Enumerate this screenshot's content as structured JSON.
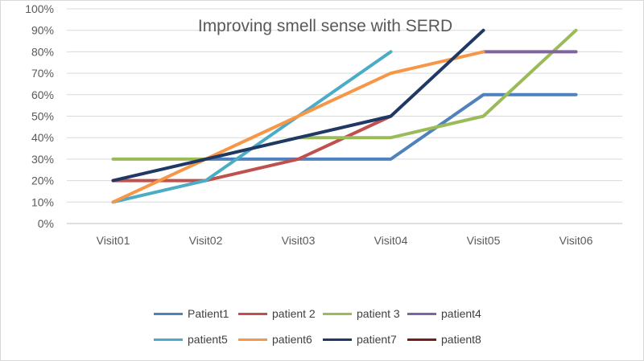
{
  "chart_data": {
    "type": "line",
    "title": "Improving smell sense with SERD",
    "xlabel": "",
    "ylabel": "",
    "categories": [
      "Visit01",
      "Visit02",
      "Visit03",
      "Visit04",
      "Visit05",
      "Visit06"
    ],
    "y_ticks": [
      "0%",
      "10%",
      "20%",
      "30%",
      "40%",
      "50%",
      "60%",
      "70%",
      "80%",
      "90%",
      "100%"
    ],
    "ylim": [
      0,
      1
    ],
    "grid": true,
    "legend_position": "bottom",
    "series": [
      {
        "name": "Patient1",
        "color": "#4f81bd",
        "values": [
          null,
          0.3,
          0.3,
          0.3,
          0.6,
          0.6
        ]
      },
      {
        "name": "patient 2",
        "color": "#c0504d",
        "values": [
          0.2,
          0.2,
          0.3,
          0.5,
          null,
          null
        ]
      },
      {
        "name": "patient 3",
        "color": "#9bbb59",
        "values": [
          0.3,
          0.3,
          0.4,
          0.4,
          0.5,
          0.9
        ]
      },
      {
        "name": "patient4",
        "color": "#8064a2",
        "values": [
          null,
          null,
          null,
          null,
          0.8,
          0.8
        ]
      },
      {
        "name": "patient5",
        "color": "#4bacc6",
        "values": [
          0.1,
          0.2,
          0.5,
          0.8,
          null,
          null
        ]
      },
      {
        "name": "patient6",
        "color": "#f79646",
        "values": [
          0.1,
          0.3,
          0.5,
          0.7,
          0.8,
          null
        ]
      },
      {
        "name": "patient7",
        "color": "#1f3864",
        "values": [
          0.2,
          0.3,
          0.4,
          0.5,
          0.9,
          null
        ]
      },
      {
        "name": "patient8",
        "color": "#7b1c1c",
        "values": [
          null,
          null,
          null,
          null,
          null,
          null
        ]
      }
    ]
  }
}
